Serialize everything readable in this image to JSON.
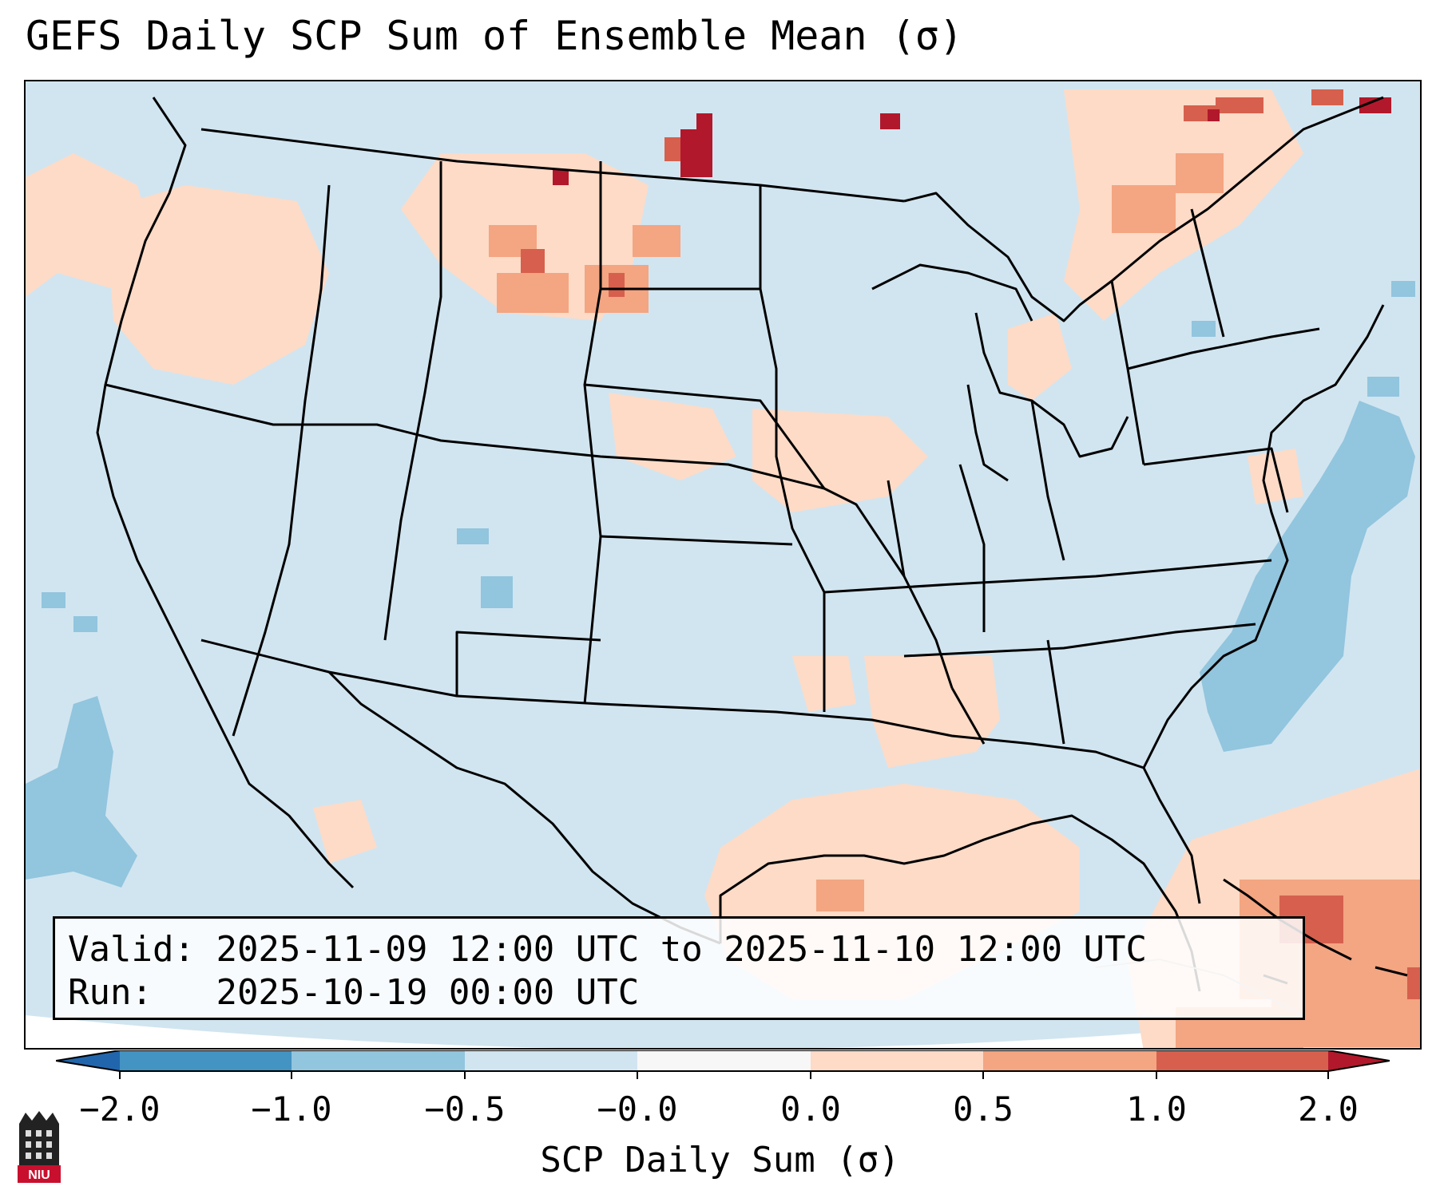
{
  "title": "GEFS Daily SCP Sum of Ensemble Mean (σ)",
  "info": {
    "valid_label": "Valid:",
    "valid_value": "2025-11-09 12:00 UTC to 2025-11-10 12:00 UTC",
    "run_label": "Run:",
    "run_value": "2025-10-19 00:00 UTC"
  },
  "colorbar": {
    "label": "SCP Daily Sum (σ)",
    "ticks": [
      "−2.0",
      "−1.0",
      "−0.5",
      "−0.0",
      "0.0",
      "0.5",
      "1.0",
      "2.0"
    ],
    "colors": {
      "below_min": "#2166ac",
      "neg_2_1": "#4393c3",
      "neg_1_05": "#92c5de",
      "neg_05_0": "#d1e5f0",
      "zero": "#f7f7f7",
      "pos_0_05": "#fddbc7",
      "pos_05_1": "#f4a582",
      "pos_1_2": "#d6604d",
      "above_max": "#b2182b"
    }
  },
  "logo": {
    "text": "NIU"
  }
}
